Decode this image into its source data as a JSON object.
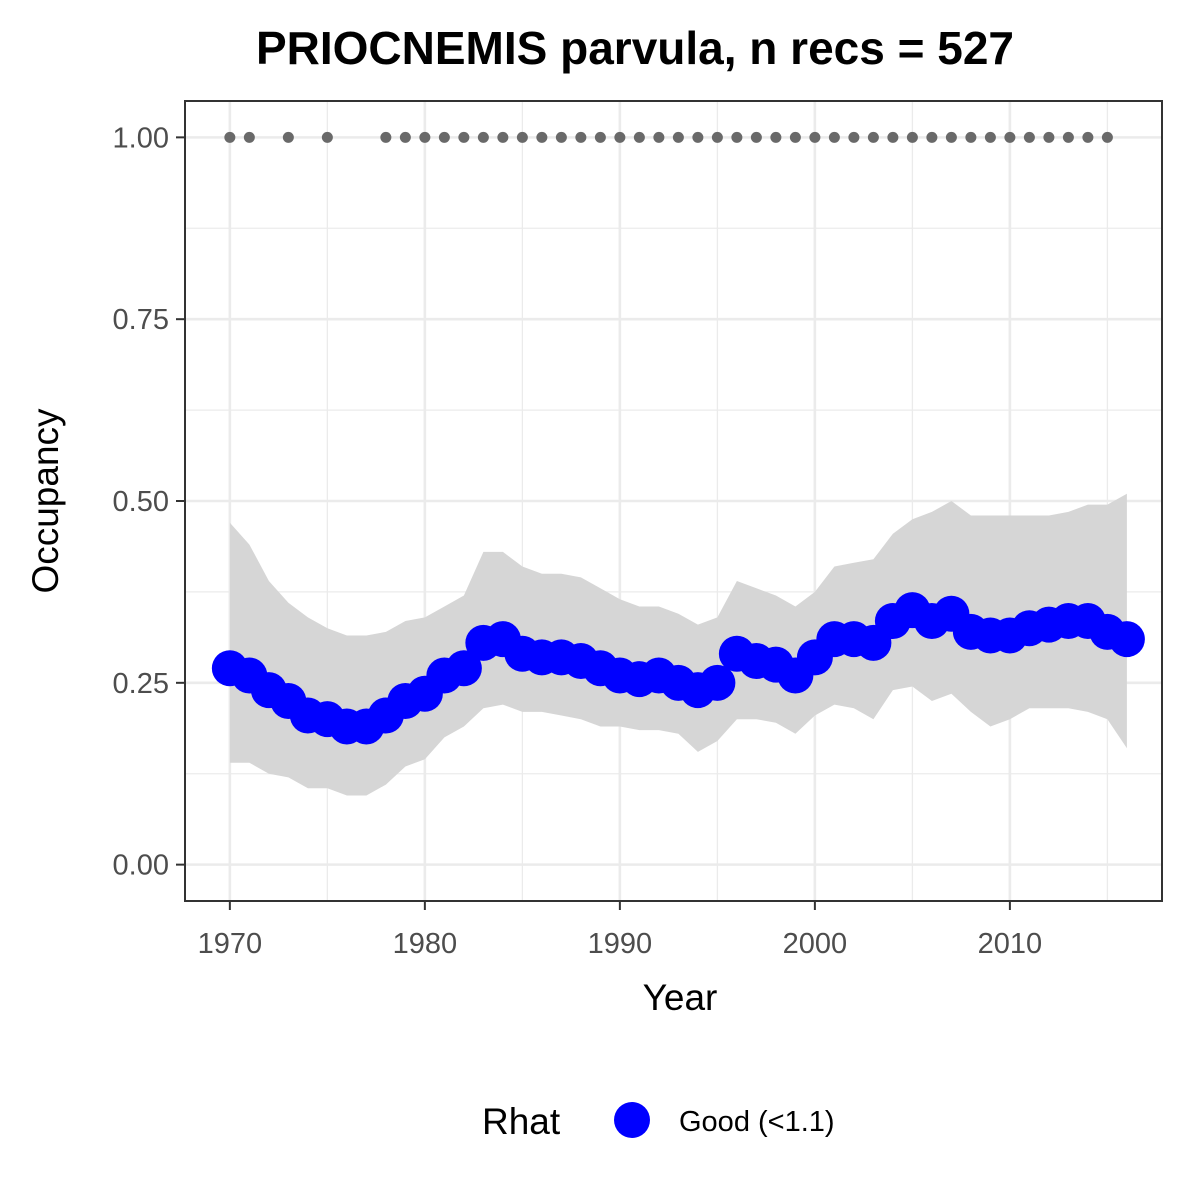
{
  "chart_data": {
    "type": "line",
    "title": "PRIOCNEMIS parvula, n recs = 527",
    "xlabel": "Year",
    "ylabel": "Occupancy",
    "xlim": [
      1967.7,
      2017.8
    ],
    "ylim": [
      -0.05,
      1.05
    ],
    "x_ticks": [
      1970,
      1980,
      1990,
      2000,
      2010
    ],
    "x_tick_labels": [
      "1970",
      "1980",
      "1990",
      "2000",
      "2010"
    ],
    "y_ticks": [
      0,
      0.25,
      0.5,
      0.75,
      1
    ],
    "y_tick_labels": [
      "0.00",
      "0.25",
      "0.50",
      "0.75",
      "1.00"
    ],
    "grid": true,
    "legend": {
      "title": "Rhat",
      "position": "bottom",
      "entries": [
        {
          "label": "Good (<1.1)",
          "color": "#0000ff"
        }
      ]
    },
    "series": [
      {
        "name": "Good (<1.1)",
        "color": "#0000ff",
        "x": [
          1970,
          1971,
          1972,
          1973,
          1974,
          1975,
          1976,
          1977,
          1978,
          1979,
          1980,
          1981,
          1982,
          1983,
          1984,
          1985,
          1986,
          1987,
          1988,
          1989,
          1990,
          1991,
          1992,
          1993,
          1994,
          1995,
          1996,
          1997,
          1998,
          1999,
          2000,
          2001,
          2002,
          2003,
          2004,
          2005,
          2006,
          2007,
          2008,
          2009,
          2010,
          2011,
          2012,
          2013,
          2014,
          2015,
          2016
        ],
        "y": [
          0.27,
          0.26,
          0.24,
          0.225,
          0.205,
          0.2,
          0.19,
          0.19,
          0.205,
          0.225,
          0.235,
          0.26,
          0.27,
          0.305,
          0.31,
          0.29,
          0.285,
          0.285,
          0.28,
          0.27,
          0.26,
          0.255,
          0.26,
          0.25,
          0.24,
          0.25,
          0.29,
          0.28,
          0.275,
          0.26,
          0.285,
          0.31,
          0.31,
          0.305,
          0.335,
          0.35,
          0.335,
          0.345,
          0.32,
          0.315,
          0.315,
          0.325,
          0.33,
          0.335,
          0.335,
          0.32,
          0.31
        ]
      }
    ],
    "ribbon": {
      "color": "#d6d6d6",
      "x": [
        1970,
        1971,
        1972,
        1973,
        1974,
        1975,
        1976,
        1977,
        1978,
        1979,
        1980,
        1981,
        1982,
        1983,
        1984,
        1985,
        1986,
        1987,
        1988,
        1989,
        1990,
        1991,
        1992,
        1993,
        1994,
        1995,
        1996,
        1997,
        1998,
        1999,
        2000,
        2001,
        2002,
        2003,
        2004,
        2005,
        2006,
        2007,
        2008,
        2009,
        2010,
        2011,
        2012,
        2013,
        2014,
        2015,
        2016
      ],
      "lower": [
        0.14,
        0.14,
        0.125,
        0.12,
        0.105,
        0.105,
        0.095,
        0.095,
        0.11,
        0.135,
        0.145,
        0.175,
        0.19,
        0.215,
        0.22,
        0.21,
        0.21,
        0.205,
        0.2,
        0.19,
        0.19,
        0.185,
        0.185,
        0.18,
        0.155,
        0.17,
        0.2,
        0.2,
        0.195,
        0.18,
        0.205,
        0.22,
        0.215,
        0.2,
        0.24,
        0.245,
        0.225,
        0.235,
        0.21,
        0.19,
        0.2,
        0.215,
        0.215,
        0.215,
        0.21,
        0.2,
        0.16
      ],
      "upper": [
        0.47,
        0.44,
        0.39,
        0.36,
        0.34,
        0.325,
        0.315,
        0.315,
        0.32,
        0.335,
        0.34,
        0.355,
        0.37,
        0.43,
        0.43,
        0.41,
        0.4,
        0.4,
        0.395,
        0.38,
        0.365,
        0.355,
        0.355,
        0.345,
        0.33,
        0.34,
        0.39,
        0.38,
        0.37,
        0.355,
        0.375,
        0.41,
        0.415,
        0.42,
        0.455,
        0.475,
        0.485,
        0.5,
        0.48,
        0.48,
        0.48,
        0.48,
        0.48,
        0.485,
        0.495,
        0.495,
        0.51
      ]
    },
    "records": {
      "color": "#696969",
      "y": 1,
      "x": [
        1970,
        1971,
        1973,
        1975,
        1978,
        1979,
        1980,
        1981,
        1982,
        1983,
        1984,
        1985,
        1986,
        1987,
        1988,
        1989,
        1990,
        1991,
        1992,
        1993,
        1994,
        1995,
        1996,
        1997,
        1998,
        1999,
        2000,
        2001,
        2002,
        2003,
        2004,
        2005,
        2006,
        2007,
        2008,
        2009,
        2010,
        2011,
        2012,
        2013,
        2014,
        2015
      ]
    }
  }
}
